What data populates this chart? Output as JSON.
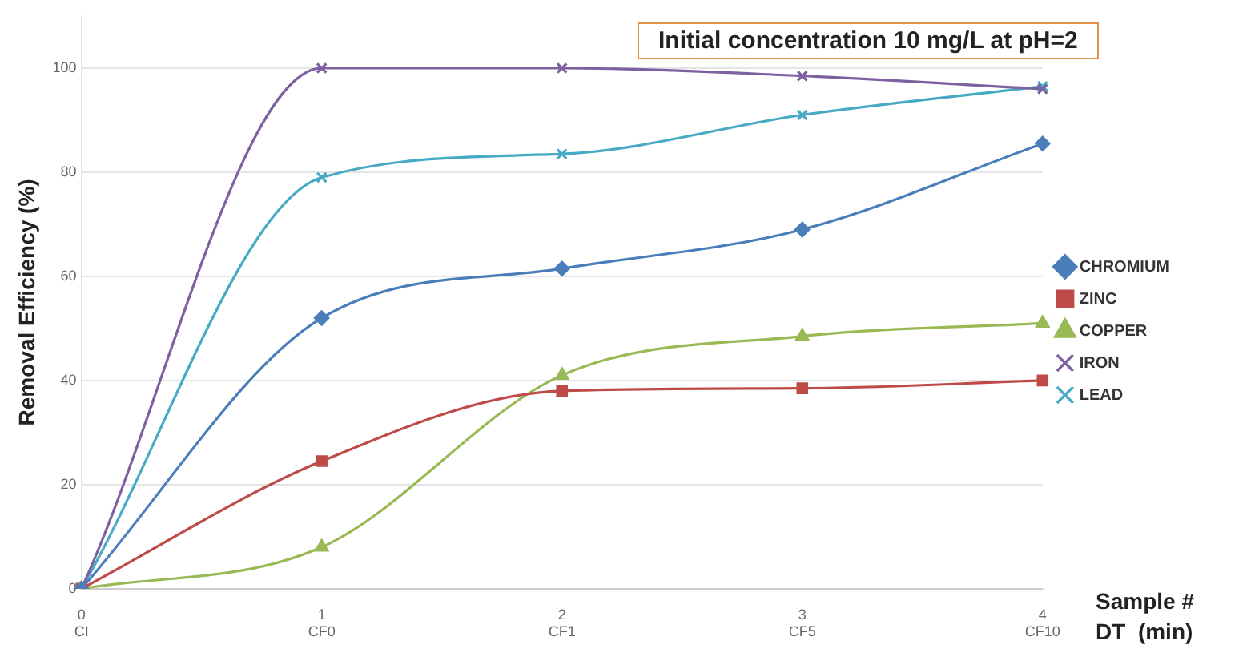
{
  "chart_data": {
    "type": "line",
    "title": "Initial concentration 10 mg/L at pH=2",
    "ylabel": "Removal Efficiency (%)",
    "xlabel": "Sample #\nDT  (min)",
    "categories": [
      "0\nCI",
      "1\nCF0",
      "2\nCF1",
      "3\nCF5",
      "4\nCF10"
    ],
    "ylim": [
      0,
      110
    ],
    "yticks": [
      0,
      20,
      40,
      60,
      80,
      100
    ],
    "grid": "y",
    "legend": "right",
    "line_style": "solid",
    "series": [
      {
        "name": "CHROMIUM",
        "color": "#4a7ebb",
        "marker": "diamond",
        "values": [
          0,
          52,
          61.5,
          69,
          85.5
        ]
      },
      {
        "name": "ZINC",
        "color": "#be4b48",
        "marker": "square",
        "values": [
          0,
          24.5,
          38,
          38.5,
          40
        ]
      },
      {
        "name": "COPPER",
        "color": "#98b954",
        "marker": "triangle",
        "values": [
          0,
          8,
          41,
          48.5,
          51
        ]
      },
      {
        "name": "IRON",
        "color": "#7d60a0",
        "marker": "cross",
        "values": [
          0,
          100,
          100,
          98.5,
          96
        ]
      },
      {
        "name": "LEAD",
        "color": "#46aac5",
        "marker": "cross",
        "values": [
          0,
          79,
          83.5,
          91,
          96.5
        ]
      }
    ]
  }
}
